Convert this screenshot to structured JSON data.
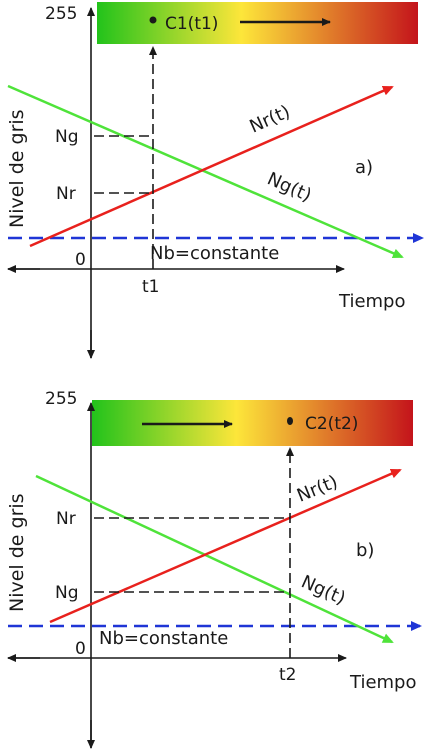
{
  "colors": {
    "red_line": "#e8211d",
    "green_line": "#4fe33a",
    "blue_line": "#1f35d6",
    "axis": "#1a1a1a",
    "gradient_green": "#22c31b",
    "gradient_yellow": "#fde63a",
    "gradient_red": "#c4141b"
  },
  "panel_a": {
    "y_top_label": "255",
    "y_axis_title": "Nivel de gris",
    "origin_label": "0",
    "x_axis_title": "Tiempo",
    "time_label": "t1",
    "ng_label": "Ng",
    "nr_label": "Nr",
    "nr_curve_label": "Nr(t)",
    "ng_curve_label": "Ng(t)",
    "nb_label": "Nb=constante",
    "panel_label": "a)",
    "color_point_label": "C1(t1)",
    "arrow_direction": "right"
  },
  "panel_b": {
    "y_top_label": "255",
    "y_axis_title": "Nivel de gris",
    "origin_label": "0",
    "x_axis_title": "Tiempo",
    "time_label": "t2",
    "nr_label": "Nr",
    "ng_label": "Ng",
    "nr_curve_label": "Nr(t)",
    "ng_curve_label": "Ng(t)",
    "nb_label": "Nb=constante",
    "panel_label": "b)",
    "color_point_label": "C2(t2)",
    "arrow_direction": "right"
  }
}
